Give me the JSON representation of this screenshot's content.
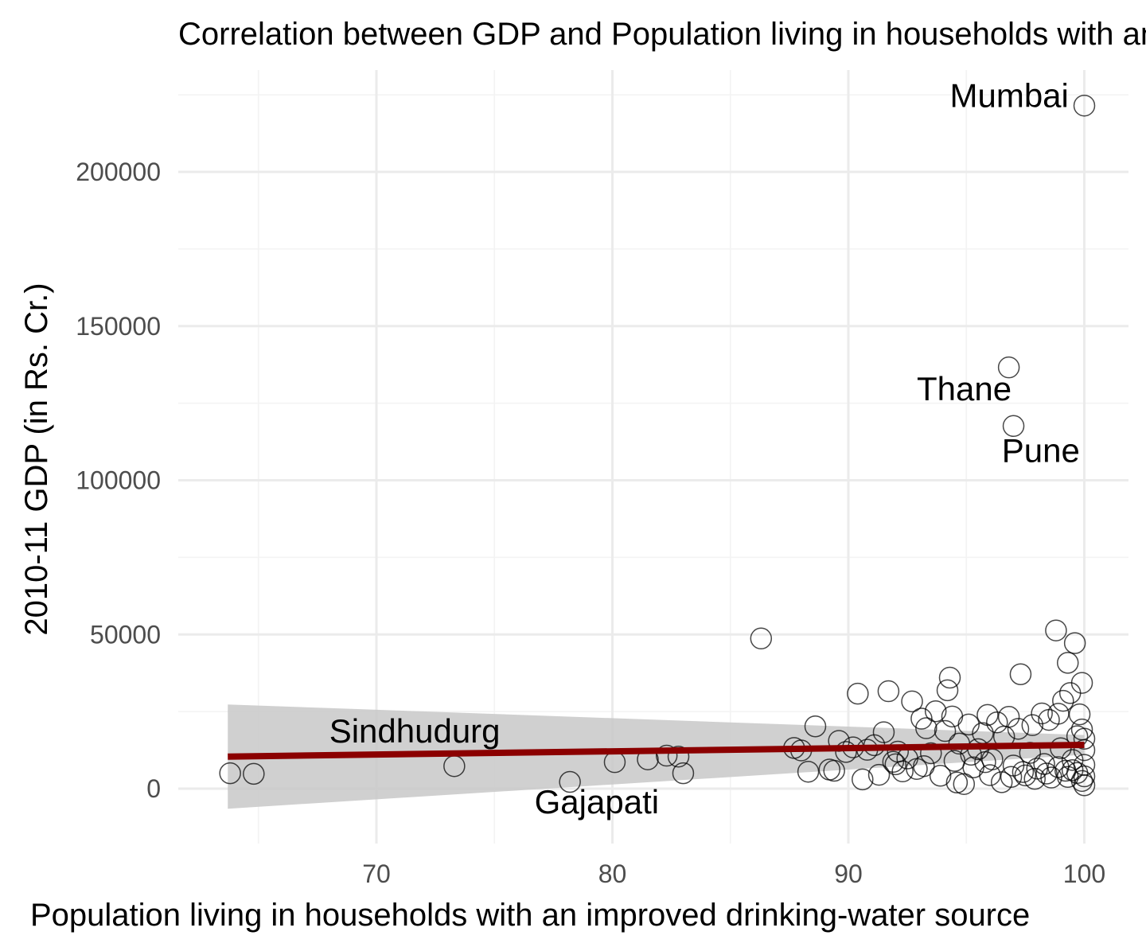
{
  "chart_data": {
    "type": "scatter",
    "title": "Correlation between GDP and Population living in households with an improved drinking-water source",
    "xlabel": "Population living in households with an improved drinking-water source",
    "ylabel": "2010-11 GDP (in Rs. Cr.)",
    "xlim": [
      62,
      102
    ],
    "ylim": [
      -18000,
      226000
    ],
    "x_ticks": [
      70,
      80,
      90,
      100
    ],
    "x_tick_labels": [
      "70",
      "80",
      "90",
      "100"
    ],
    "y_ticks": [
      0,
      50000,
      100000,
      150000,
      200000
    ],
    "y_tick_labels": [
      "0",
      "50000",
      "100000",
      "150000",
      "200000"
    ],
    "grid": true,
    "colors": {
      "points": "#000000",
      "trend": "#8b0000",
      "ribbon": "#c8c8c8",
      "grid_major": "#ebebeb",
      "grid_minor": "#f3f3f3"
    },
    "trend": {
      "x_range": [
        63.7,
        100
      ],
      "y_start": 10400,
      "y_end": 14200,
      "ci_start": [
        -6500,
        27300
      ],
      "ci_end": [
        11000,
        17400
      ]
    },
    "annotations": [
      {
        "text": "Mumbai",
        "x": 94.3,
        "y": 221000,
        "anchor": "start"
      },
      {
        "text": "Thane",
        "x": 92.9,
        "y": 126000,
        "anchor": "start"
      },
      {
        "text": "Pune",
        "x": 96.5,
        "y": 106000,
        "anchor": "start"
      },
      {
        "text": "Sindhudurg",
        "x": 68.0,
        "y": 15000,
        "anchor": "start"
      },
      {
        "text": "Gajapati",
        "x": 76.7,
        "y": -8000,
        "anchor": "start"
      }
    ],
    "points": [
      [
        100.0,
        221500
      ],
      [
        96.8,
        136600
      ],
      [
        97.0,
        117600
      ],
      [
        86.3,
        48700
      ],
      [
        63.8,
        5000
      ],
      [
        64.8,
        4800
      ],
      [
        73.3,
        7300
      ],
      [
        78.2,
        2200
      ],
      [
        80.1,
        8600
      ],
      [
        81.5,
        9500
      ],
      [
        82.3,
        10700
      ],
      [
        82.8,
        10400
      ],
      [
        83.0,
        5000
      ],
      [
        87.7,
        13200
      ],
      [
        88.0,
        12400
      ],
      [
        88.3,
        5500
      ],
      [
        88.6,
        20200
      ],
      [
        89.2,
        6200
      ],
      [
        89.4,
        5800
      ],
      [
        89.6,
        15500
      ],
      [
        89.9,
        11900
      ],
      [
        90.2,
        13400
      ],
      [
        90.4,
        30800
      ],
      [
        90.6,
        3000
      ],
      [
        90.8,
        12600
      ],
      [
        91.1,
        14100
      ],
      [
        91.3,
        4500
      ],
      [
        91.5,
        18300
      ],
      [
        91.7,
        31600
      ],
      [
        91.9,
        8700
      ],
      [
        92.1,
        12000
      ],
      [
        92.3,
        5600
      ],
      [
        92.5,
        9800
      ],
      [
        92.7,
        28300
      ],
      [
        92.9,
        6400
      ],
      [
        93.1,
        22700
      ],
      [
        93.3,
        19600
      ],
      [
        93.5,
        11500
      ],
      [
        93.7,
        25100
      ],
      [
        93.9,
        4200
      ],
      [
        94.1,
        18700
      ],
      [
        94.2,
        31900
      ],
      [
        94.3,
        36000
      ],
      [
        94.4,
        23400
      ],
      [
        94.5,
        9000
      ],
      [
        94.6,
        2000
      ],
      [
        94.7,
        14600
      ],
      [
        94.9,
        1500
      ],
      [
        95.1,
        20800
      ],
      [
        95.3,
        6900
      ],
      [
        95.5,
        12800
      ],
      [
        95.7,
        18000
      ],
      [
        95.9,
        23900
      ],
      [
        96.0,
        4400
      ],
      [
        96.1,
        9500
      ],
      [
        96.3,
        21500
      ],
      [
        96.5,
        2100
      ],
      [
        96.6,
        16900
      ],
      [
        96.8,
        23300
      ],
      [
        97.0,
        7500
      ],
      [
        97.2,
        19400
      ],
      [
        97.3,
        37100
      ],
      [
        97.5,
        4300
      ],
      [
        97.7,
        11600
      ],
      [
        97.8,
        20600
      ],
      [
        98.0,
        6500
      ],
      [
        98.2,
        24400
      ],
      [
        98.3,
        8000
      ],
      [
        98.5,
        22300
      ],
      [
        98.6,
        3600
      ],
      [
        98.8,
        51300
      ],
      [
        98.9,
        24300
      ],
      [
        99.0,
        13100
      ],
      [
        99.1,
        28500
      ],
      [
        99.2,
        5800
      ],
      [
        99.3,
        40800
      ],
      [
        99.4,
        31000
      ],
      [
        99.5,
        9300
      ],
      [
        99.6,
        47200
      ],
      [
        99.7,
        17000
      ],
      [
        99.8,
        24100
      ],
      [
        99.9,
        34300
      ],
      [
        99.9,
        19200
      ],
      [
        99.9,
        2500
      ],
      [
        100.0,
        16200
      ],
      [
        100.0,
        12500
      ],
      [
        100.0,
        7700
      ],
      [
        100.0,
        4000
      ],
      [
        100.0,
        1100
      ],
      [
        99.7,
        5100
      ],
      [
        99.5,
        6000
      ],
      [
        99.3,
        3800
      ],
      [
        98.9,
        7000
      ],
      [
        98.4,
        4900
      ],
      [
        97.9,
        3200
      ],
      [
        97.4,
        5400
      ],
      [
        96.9,
        3800
      ],
      [
        95.8,
        8600
      ],
      [
        95.2,
        11000
      ],
      [
        93.2,
        7300
      ],
      [
        92.0,
        7900
      ]
    ]
  }
}
